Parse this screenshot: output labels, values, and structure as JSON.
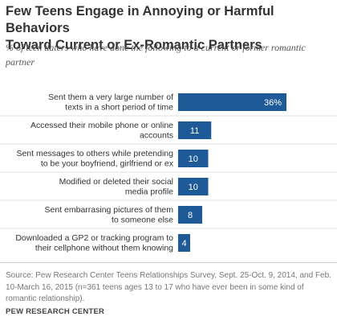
{
  "header": {
    "title_line1": "Few Teens Engage in Annoying or Harmful Behaviors",
    "title_line2": "Toward Current or Ex-Romantic Partners",
    "subtitle_line1": "% of teen daters who have done the following to a current or former romantic",
    "subtitle_line2": "partner"
  },
  "chart_data": {
    "type": "bar",
    "orientation": "horizontal",
    "categories": [
      [
        "Sent them a very large number of",
        "texts in a short period of time"
      ],
      [
        "Accessed their mobile phone or online",
        "accounts"
      ],
      [
        "Sent messages to others while pretending",
        "to be your boyfriend, girlfriend or ex"
      ],
      [
        "Modified or deleted their social",
        "media profile"
      ],
      [
        "Sent embarrasing pictures of them",
        "to someone else"
      ],
      [
        "Downloaded a GP2 or tracking program to",
        "their cellphone without them knowing"
      ]
    ],
    "values": [
      36,
      11,
      10,
      10,
      8,
      4
    ],
    "value_labels": [
      "36%",
      "11",
      "10",
      "10",
      "8",
      "4"
    ],
    "bar_color": "#1f5a98",
    "xlim": [
      0,
      36
    ]
  },
  "footer": {
    "source_line1": "Source: Pew Research Center Teens Relationships Survey, Sept. 25-Oct. 9, 2014, and Feb.",
    "source_line2": "10-March 16, 2015 (n=361 teens ages 13 to 17 who have ever been in some kind of",
    "source_line3": "romantic relationship).",
    "brand": "PEW RESEARCH CENTER"
  }
}
